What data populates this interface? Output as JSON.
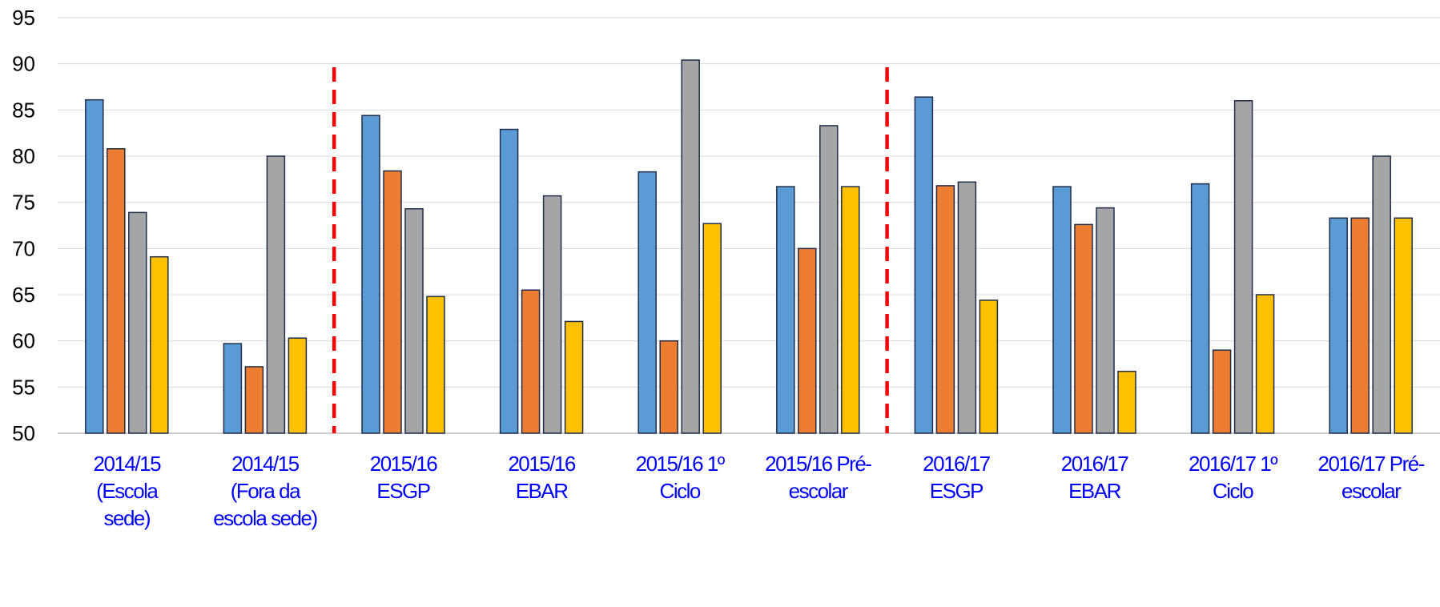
{
  "chart_data": {
    "type": "bar",
    "categories": [
      [
        "2014/15",
        "(Escola",
        "sede)"
      ],
      [
        "2014/15",
        "(Fora da",
        "escola sede)"
      ],
      [
        "2015/16",
        "ESGP"
      ],
      [
        "2015/16",
        "EBAR"
      ],
      [
        "2015/16 1º",
        "Ciclo"
      ],
      [
        "2015/16 Pré-",
        "escolar"
      ],
      [
        "2016/17",
        "ESGP"
      ],
      [
        "2016/17",
        "EBAR"
      ],
      [
        "2016/17 1º",
        "Ciclo"
      ],
      [
        "2016/17 Pré-",
        "escolar"
      ]
    ],
    "series": [
      {
        "color": "#5b9bd5",
        "values": [
          86.1,
          59.7,
          84.4,
          82.9,
          78.3,
          76.7,
          86.4,
          76.7,
          77.0,
          73.3
        ]
      },
      {
        "color": "#ed7d31",
        "values": [
          80.8,
          57.2,
          78.4,
          65.5,
          60.0,
          70.0,
          76.8,
          72.6,
          59.0,
          73.3
        ]
      },
      {
        "color": "#a5a5a5",
        "values": [
          73.9,
          80.0,
          74.3,
          75.7,
          90.4,
          83.3,
          77.2,
          74.4,
          86.0,
          80.0
        ]
      },
      {
        "color": "#ffc000",
        "values": [
          69.1,
          60.3,
          64.8,
          62.1,
          72.7,
          76.7,
          64.4,
          56.7,
          65.0,
          73.3
        ]
      }
    ],
    "ylim": [
      50,
      95
    ],
    "yticks": [
      50,
      55,
      60,
      65,
      70,
      75,
      80,
      85,
      90,
      95
    ],
    "grid": true,
    "separators": [
      {
        "after_category": 1,
        "color": "#ff0000"
      },
      {
        "after_category": 5,
        "color": "#ff0000"
      }
    ],
    "title": "",
    "xlabel": "",
    "ylabel": ""
  }
}
